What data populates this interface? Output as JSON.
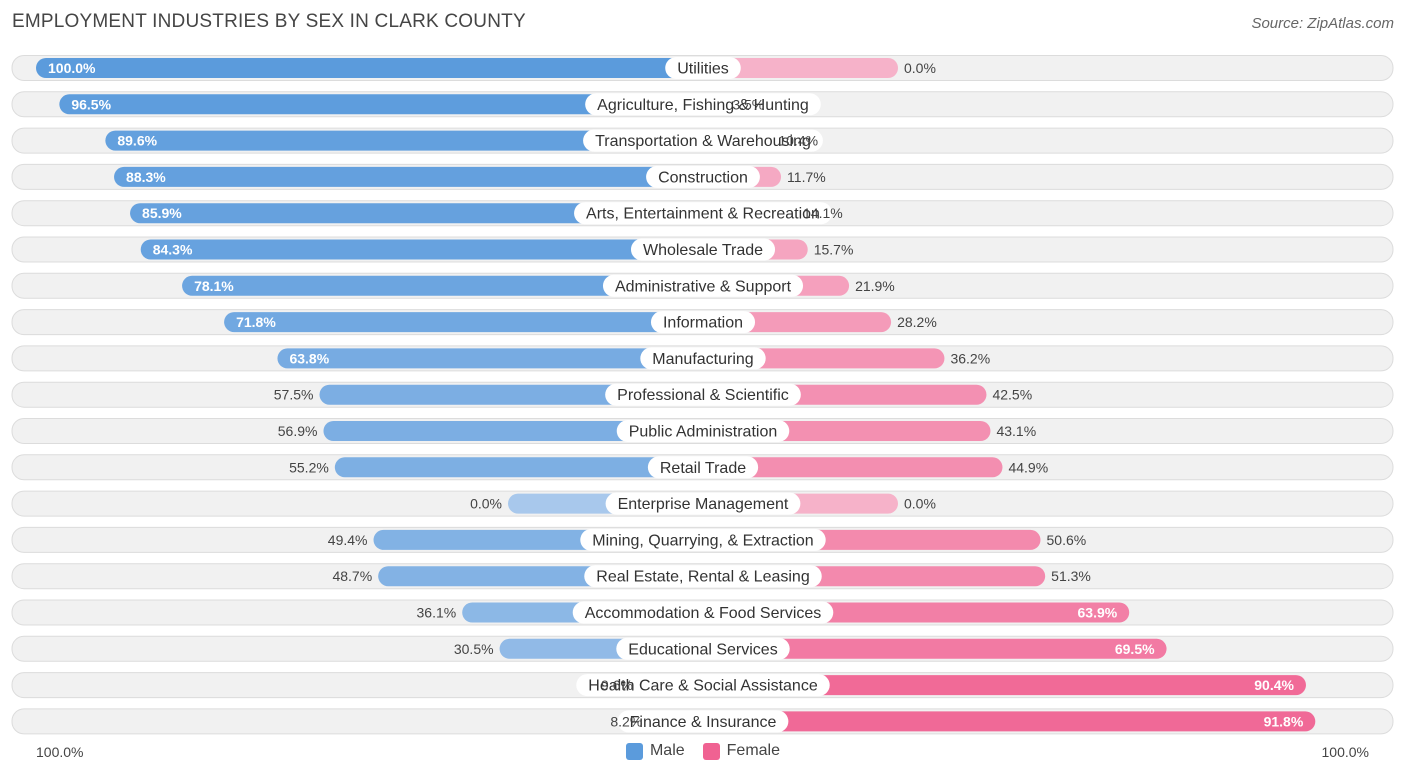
{
  "header": {
    "title": "EMPLOYMENT INDUSTRIES BY SEX IN CLARK COUNTY",
    "source": "Source: ZipAtlas.com"
  },
  "legend": {
    "male_label": "Male",
    "female_label": "Female",
    "male_color": "#5b9bdc",
    "female_color": "#f06292"
  },
  "axis": {
    "left_label": "100.0%",
    "right_label": "100.0%"
  },
  "chart_data": {
    "type": "bar",
    "title": "EMPLOYMENT INDUSTRIES BY SEX IN CLARK COUNTY",
    "orientation": "diverging-horizontal",
    "xlim": [
      -100,
      100
    ],
    "categories": [
      "Utilities",
      "Agriculture, Fishing & Hunting",
      "Transportation & Warehousing",
      "Construction",
      "Arts, Entertainment & Recreation",
      "Wholesale Trade",
      "Administrative & Support",
      "Information",
      "Manufacturing",
      "Professional & Scientific",
      "Public Administration",
      "Retail Trade",
      "Enterprise Management",
      "Mining, Quarrying, & Extraction",
      "Real Estate, Rental & Leasing",
      "Accommodation & Food Services",
      "Educational Services",
      "Health Care & Social Assistance",
      "Finance & Insurance"
    ],
    "series": [
      {
        "name": "Male",
        "values": [
          100.0,
          96.5,
          89.6,
          88.3,
          85.9,
          84.3,
          78.1,
          71.8,
          63.8,
          57.5,
          56.9,
          55.2,
          0.0,
          49.4,
          48.7,
          36.1,
          30.5,
          9.6,
          8.2
        ]
      },
      {
        "name": "Female",
        "values": [
          0.0,
          3.5,
          10.4,
          11.7,
          14.1,
          15.7,
          21.9,
          28.2,
          36.2,
          42.5,
          43.1,
          44.9,
          0.0,
          50.6,
          51.3,
          63.9,
          69.5,
          90.4,
          91.8
        ]
      }
    ],
    "value_labels": {
      "Male": [
        "100.0%",
        "96.5%",
        "89.6%",
        "88.3%",
        "85.9%",
        "84.3%",
        "78.1%",
        "71.8%",
        "63.8%",
        "57.5%",
        "56.9%",
        "55.2%",
        "0.0%",
        "49.4%",
        "48.7%",
        "36.1%",
        "30.5%",
        "9.6%",
        "8.2%"
      ],
      "Female": [
        "0.0%",
        "3.5%",
        "10.4%",
        "11.7%",
        "14.1%",
        "15.7%",
        "21.9%",
        "28.2%",
        "36.2%",
        "42.5%",
        "43.1%",
        "44.9%",
        "0.0%",
        "50.6%",
        "51.3%",
        "63.9%",
        "69.5%",
        "90.4%",
        "91.8%"
      ]
    },
    "legend_position": "bottom-center"
  }
}
